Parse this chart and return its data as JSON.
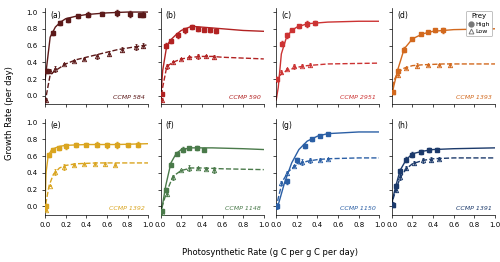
{
  "panels": [
    {
      "label": "(a)",
      "strain": "CCMP 584",
      "color": "#5C1A1A",
      "high_x": [
        0.02,
        0.08,
        0.15,
        0.22,
        0.32,
        0.42,
        0.55,
        0.7,
        0.82,
        0.92,
        0.95
      ],
      "high_y": [
        0.3,
        0.75,
        0.87,
        0.91,
        0.95,
        0.97,
        0.98,
        0.99,
        0.98,
        0.97,
        0.97
      ],
      "low_x": [
        0.01,
        0.05,
        0.1,
        0.18,
        0.28,
        0.38,
        0.5,
        0.62,
        0.75,
        0.88,
        0.95
      ],
      "low_y": [
        -0.05,
        0.3,
        0.32,
        0.38,
        0.42,
        0.44,
        0.47,
        0.5,
        0.55,
        0.58,
        0.6
      ],
      "high_curve_x": [
        0.0,
        0.05,
        0.1,
        0.15,
        0.2,
        0.3,
        0.4,
        0.6,
        0.8,
        1.0
      ],
      "high_curve_y": [
        0.18,
        0.7,
        0.82,
        0.88,
        0.92,
        0.95,
        0.97,
        0.99,
        1.0,
        1.0
      ],
      "low_curve_x": [
        0.0,
        0.05,
        0.1,
        0.2,
        0.3,
        0.5,
        0.7,
        0.9,
        1.0
      ],
      "low_curve_y": [
        -0.08,
        0.25,
        0.3,
        0.38,
        0.43,
        0.49,
        0.55,
        0.59,
        0.61
      ]
    },
    {
      "label": "(b)",
      "strain": "CCMP 590",
      "color": "#B22222",
      "high_x": [
        0.01,
        0.05,
        0.1,
        0.17,
        0.24,
        0.3,
        0.36,
        0.42,
        0.48,
        0.54
      ],
      "high_y": [
        0.02,
        0.6,
        0.65,
        0.72,
        0.78,
        0.82,
        0.8,
        0.79,
        0.78,
        0.77
      ],
      "low_x": [
        0.01,
        0.06,
        0.12,
        0.2,
        0.28,
        0.36,
        0.44,
        0.52
      ],
      "low_y": [
        -0.05,
        0.35,
        0.4,
        0.44,
        0.46,
        0.47,
        0.47,
        0.46
      ],
      "high_curve_x": [
        0.0,
        0.02,
        0.06,
        0.1,
        0.15,
        0.2,
        0.3,
        0.4,
        0.6,
        0.8,
        1.0
      ],
      "high_curve_y": [
        -0.05,
        0.3,
        0.6,
        0.67,
        0.73,
        0.78,
        0.83,
        0.82,
        0.8,
        0.78,
        0.77
      ],
      "low_curve_x": [
        0.0,
        0.02,
        0.06,
        0.12,
        0.2,
        0.3,
        0.4,
        0.5,
        0.6,
        1.0
      ],
      "low_curve_y": [
        -0.08,
        0.1,
        0.35,
        0.4,
        0.44,
        0.46,
        0.47,
        0.47,
        0.46,
        0.44
      ]
    },
    {
      "label": "(c)",
      "strain": "CCMP 2951",
      "color": "#CC3333",
      "high_x": [
        0.01,
        0.06,
        0.1,
        0.15,
        0.22,
        0.3,
        0.38
      ],
      "high_y": [
        0.2,
        0.62,
        0.72,
        0.78,
        0.83,
        0.86,
        0.87
      ],
      "low_x": [
        0.01,
        0.05,
        0.1,
        0.17,
        0.25,
        0.33
      ],
      "low_y": [
        0.2,
        0.28,
        0.32,
        0.35,
        0.36,
        0.37
      ],
      "high_curve_x": [
        0.0,
        0.02,
        0.05,
        0.1,
        0.15,
        0.2,
        0.3,
        0.5,
        0.8,
        1.0
      ],
      "high_curve_y": [
        -0.05,
        0.1,
        0.5,
        0.7,
        0.78,
        0.82,
        0.86,
        0.88,
        0.89,
        0.89
      ],
      "low_curve_x": [
        0.0,
        0.02,
        0.05,
        0.1,
        0.2,
        0.3,
        0.5,
        1.0
      ],
      "low_curve_y": [
        0.15,
        0.22,
        0.26,
        0.3,
        0.34,
        0.36,
        0.38,
        0.39
      ]
    },
    {
      "label": "(d)",
      "strain": "CCMP 1393",
      "color": "#D2691E",
      "high_x": [
        0.01,
        0.06,
        0.12,
        0.2,
        0.28,
        0.35,
        0.42,
        0.5
      ],
      "high_y": [
        0.05,
        0.3,
        0.55,
        0.68,
        0.74,
        0.76,
        0.78,
        0.78
      ],
      "low_x": [
        0.01,
        0.06,
        0.14,
        0.24,
        0.35,
        0.46,
        0.56
      ],
      "low_y": [
        0.05,
        0.25,
        0.33,
        0.36,
        0.37,
        0.37,
        0.37
      ],
      "high_curve_x": [
        0.0,
        0.02,
        0.06,
        0.12,
        0.2,
        0.3,
        0.4,
        0.6,
        1.0
      ],
      "high_curve_y": [
        0.0,
        0.12,
        0.32,
        0.56,
        0.68,
        0.74,
        0.77,
        0.79,
        0.8
      ],
      "low_curve_x": [
        0.0,
        0.02,
        0.06,
        0.12,
        0.2,
        0.3,
        0.5,
        0.8,
        1.0
      ],
      "low_curve_y": [
        0.02,
        0.18,
        0.28,
        0.33,
        0.36,
        0.37,
        0.38,
        0.38,
        0.38
      ]
    },
    {
      "label": "(e)",
      "strain": "CCMP 1392",
      "color": "#DAA520",
      "high_x": [
        0.01,
        0.04,
        0.08,
        0.14,
        0.2,
        0.3,
        0.4,
        0.5,
        0.6,
        0.7,
        0.8,
        0.9
      ],
      "high_y": [
        0.0,
        0.62,
        0.68,
        0.7,
        0.72,
        0.73,
        0.74,
        0.74,
        0.73,
        0.73,
        0.73,
        0.74
      ],
      "low_x": [
        0.01,
        0.05,
        0.1,
        0.18,
        0.28,
        0.38,
        0.48,
        0.58,
        0.68
      ],
      "low_y": [
        -0.04,
        0.25,
        0.41,
        0.47,
        0.5,
        0.51,
        0.51,
        0.51,
        0.5
      ],
      "high_curve_x": [
        0.0,
        0.01,
        0.03,
        0.06,
        0.1,
        0.15,
        0.2,
        0.4,
        0.7,
        1.0
      ],
      "high_curve_y": [
        -0.02,
        0.4,
        0.6,
        0.67,
        0.7,
        0.72,
        0.73,
        0.74,
        0.74,
        0.75
      ],
      "low_curve_x": [
        0.0,
        0.01,
        0.04,
        0.08,
        0.14,
        0.2,
        0.3,
        0.5,
        0.7,
        1.0
      ],
      "low_curve_y": [
        -0.06,
        0.05,
        0.25,
        0.38,
        0.46,
        0.49,
        0.51,
        0.52,
        0.52,
        0.52
      ]
    },
    {
      "label": "(f)",
      "strain": "CCMP 1148",
      "color": "#4A7A4A",
      "high_x": [
        0.01,
        0.05,
        0.1,
        0.16,
        0.22,
        0.28,
        0.35,
        0.42
      ],
      "high_y": [
        -0.05,
        0.2,
        0.5,
        0.63,
        0.68,
        0.7,
        0.7,
        0.68
      ],
      "low_x": [
        0.01,
        0.06,
        0.12,
        0.2,
        0.28,
        0.36,
        0.44,
        0.52
      ],
      "low_y": [
        -0.08,
        0.15,
        0.35,
        0.43,
        0.46,
        0.46,
        0.45,
        0.44
      ],
      "high_curve_x": [
        0.0,
        0.02,
        0.05,
        0.1,
        0.15,
        0.2,
        0.3,
        0.5,
        0.8,
        1.0
      ],
      "high_curve_y": [
        -0.08,
        0.03,
        0.25,
        0.52,
        0.63,
        0.68,
        0.7,
        0.7,
        0.69,
        0.68
      ],
      "low_curve_x": [
        0.0,
        0.02,
        0.06,
        0.12,
        0.2,
        0.3,
        0.4,
        0.6,
        1.0
      ],
      "low_curve_y": [
        -0.1,
        0.02,
        0.18,
        0.36,
        0.43,
        0.46,
        0.46,
        0.45,
        0.44
      ]
    },
    {
      "label": "(g)",
      "strain": "CCMP 1150",
      "color": "#2B5FA5",
      "high_x": [
        0.01,
        0.1,
        0.2,
        0.28,
        0.35,
        0.42,
        0.5
      ],
      "high_y": [
        0.0,
        0.3,
        0.55,
        0.72,
        0.8,
        0.84,
        0.86
      ],
      "low_x": [
        0.01,
        0.05,
        0.1,
        0.17,
        0.25,
        0.33,
        0.42,
        0.5
      ],
      "low_y": [
        0.0,
        0.28,
        0.4,
        0.48,
        0.53,
        0.55,
        0.56,
        0.57
      ],
      "high_curve_x": [
        0.0,
        0.02,
        0.08,
        0.15,
        0.22,
        0.3,
        0.4,
        0.5,
        0.8,
        1.0
      ],
      "high_curve_y": [
        -0.03,
        0.02,
        0.28,
        0.52,
        0.68,
        0.78,
        0.84,
        0.87,
        0.89,
        0.89
      ],
      "low_curve_x": [
        0.0,
        0.02,
        0.06,
        0.12,
        0.2,
        0.3,
        0.4,
        0.5,
        0.8,
        1.0
      ],
      "low_curve_y": [
        -0.02,
        0.1,
        0.3,
        0.42,
        0.5,
        0.54,
        0.56,
        0.57,
        0.58,
        0.58
      ]
    },
    {
      "label": "(h)",
      "strain": "CCMP 1391",
      "color": "#1C3A6B",
      "high_x": [
        0.01,
        0.04,
        0.08,
        0.14,
        0.2,
        0.28,
        0.36,
        0.44
      ],
      "high_y": [
        0.02,
        0.25,
        0.42,
        0.56,
        0.62,
        0.65,
        0.67,
        0.68
      ],
      "low_x": [
        0.01,
        0.04,
        0.08,
        0.14,
        0.22,
        0.3,
        0.38,
        0.46
      ],
      "low_y": [
        0.02,
        0.2,
        0.35,
        0.46,
        0.52,
        0.55,
        0.56,
        0.57
      ],
      "high_curve_x": [
        0.0,
        0.01,
        0.04,
        0.08,
        0.14,
        0.2,
        0.3,
        0.4,
        0.6,
        1.0
      ],
      "high_curve_y": [
        0.0,
        0.1,
        0.25,
        0.43,
        0.56,
        0.63,
        0.66,
        0.68,
        0.69,
        0.7
      ],
      "low_curve_x": [
        0.0,
        0.01,
        0.04,
        0.08,
        0.14,
        0.2,
        0.3,
        0.4,
        0.6,
        1.0
      ],
      "low_curve_y": [
        0.0,
        0.08,
        0.2,
        0.34,
        0.45,
        0.51,
        0.55,
        0.57,
        0.58,
        0.58
      ]
    }
  ],
  "yticks": [
    0.0,
    0.2,
    0.4,
    0.6,
    0.8,
    1.0
  ],
  "xticks": [
    0.0,
    0.2,
    0.4,
    0.6,
    0.8,
    1.0
  ],
  "xlabel": "Photosynthetic Rate (g C per g C per day)",
  "ylabel": "Growth Rate (per day)",
  "bg_color": "#FFFFFF",
  "legend_prey_high": "High",
  "legend_prey_low": "Low",
  "legend_title": "Prey"
}
